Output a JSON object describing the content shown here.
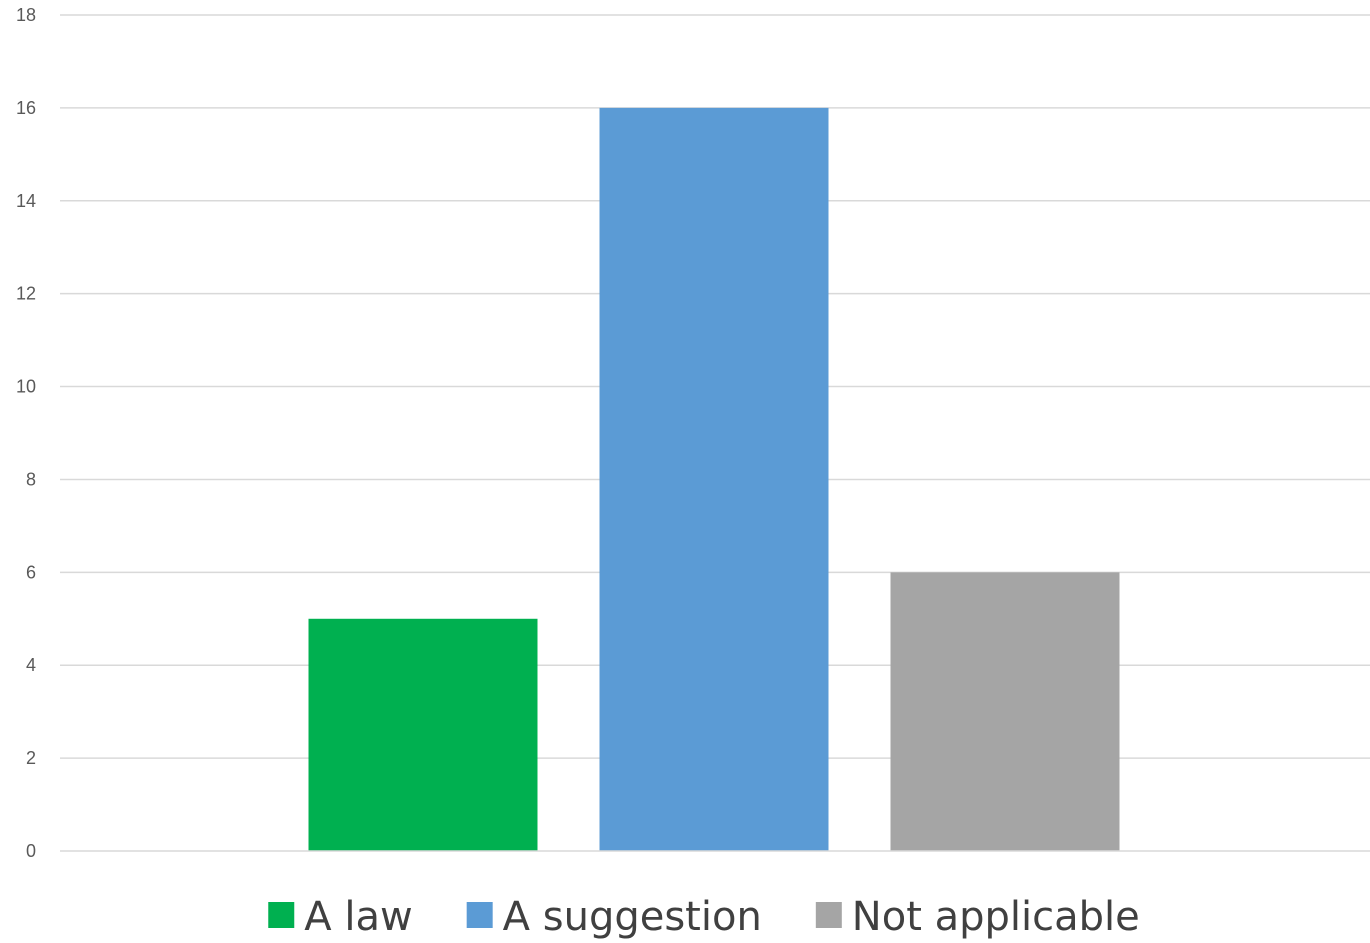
{
  "chart_data": {
    "type": "bar",
    "title": "",
    "xlabel": "",
    "ylabel": "",
    "categories": [
      "A law",
      "A suggestion",
      "Not applicable"
    ],
    "values": [
      5,
      16,
      6
    ],
    "colors": [
      "#00b050",
      "#5b9bd5",
      "#a5a5a5"
    ],
    "ylim": [
      0,
      18
    ],
    "yticks": [
      0,
      2,
      4,
      6,
      8,
      10,
      12,
      14,
      16,
      18
    ],
    "grid": true,
    "legend": {
      "position": "bottom",
      "entries": [
        {
          "label": "A law",
          "color": "#00b050"
        },
        {
          "label": "A suggestion",
          "color": "#5b9bd5"
        },
        {
          "label": "Not applicable",
          "color": "#a5a5a5"
        }
      ]
    }
  }
}
